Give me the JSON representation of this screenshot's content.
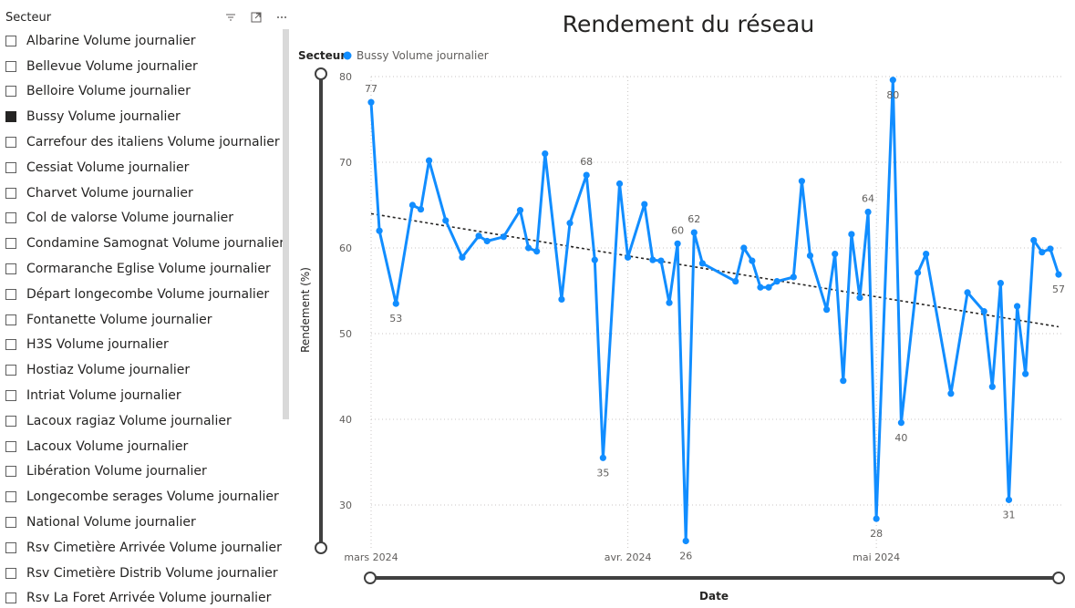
{
  "slicer": {
    "title": "Secteur",
    "icons": [
      "filter-icon",
      "focus-mode-icon",
      "more-options-icon"
    ],
    "items": [
      {
        "label": "Albarine Volume journalier",
        "checked": false
      },
      {
        "label": "Bellevue Volume journalier",
        "checked": false
      },
      {
        "label": "Belloire Volume journalier",
        "checked": false
      },
      {
        "label": "Bussy Volume journalier",
        "checked": true
      },
      {
        "label": "Carrefour des italiens Volume journalier",
        "checked": false
      },
      {
        "label": "Cessiat Volume journalier",
        "checked": false
      },
      {
        "label": "Charvet Volume journalier",
        "checked": false
      },
      {
        "label": "Col de valorse Volume journalier",
        "checked": false
      },
      {
        "label": "Condamine Samognat Volume journalier",
        "checked": false
      },
      {
        "label": "Cormaranche Eglise Volume journalier",
        "checked": false
      },
      {
        "label": "Départ longecombe Volume journalier",
        "checked": false
      },
      {
        "label": "Fontanette Volume journalier",
        "checked": false
      },
      {
        "label": "H3S Volume journalier",
        "checked": false
      },
      {
        "label": "Hostiaz Volume journalier",
        "checked": false
      },
      {
        "label": "Intriat Volume journalier",
        "checked": false
      },
      {
        "label": "Lacoux ragiaz Volume journalier",
        "checked": false
      },
      {
        "label": "Lacoux Volume journalier",
        "checked": false
      },
      {
        "label": "Libération Volume journalier",
        "checked": false
      },
      {
        "label": "Longecombe serages Volume journalier",
        "checked": false
      },
      {
        "label": "National Volume journalier",
        "checked": false
      },
      {
        "label": "Rsv Cimetière Arrivée Volume journalier",
        "checked": false
      },
      {
        "label": "Rsv Cimetière Distrib Volume journalier",
        "checked": false
      },
      {
        "label": "Rsv La Foret Arrivée Volume journalier",
        "checked": false
      }
    ]
  },
  "chart_data": {
    "type": "line",
    "title": "Rendement du réseau",
    "xlabel": "Date",
    "ylabel": "Rendement (%)",
    "legend": {
      "title": "Secteur",
      "placement": "top-left"
    },
    "ylim": [
      25,
      80
    ],
    "xlim": [
      "2024-03-01",
      "2024-05-23"
    ],
    "yticks": [
      30,
      40,
      50,
      60,
      70,
      80
    ],
    "xticks": [
      {
        "date": "2024-03-01",
        "label": "mars 2024"
      },
      {
        "date": "2024-04-01",
        "label": "avr. 2024"
      },
      {
        "date": "2024-05-01",
        "label": "mai 2024"
      }
    ],
    "grid": true,
    "colors": {
      "series": "#118DFF",
      "trend": "#252423"
    },
    "trendline": {
      "style": "dotted",
      "start": [
        "2024-03-01",
        64
      ],
      "end": [
        "2024-05-23",
        50.8
      ]
    },
    "series": [
      {
        "name": "Bussy Volume journalier",
        "points": [
          [
            "2024-03-01",
            77
          ],
          [
            "2024-03-02",
            62
          ],
          [
            "2024-03-04",
            53.5
          ],
          [
            "2024-03-06",
            65
          ],
          [
            "2024-03-07",
            64.5
          ],
          [
            "2024-03-08",
            70.2
          ],
          [
            "2024-03-10",
            63.2
          ],
          [
            "2024-03-12",
            58.9
          ],
          [
            "2024-03-14",
            61.4
          ],
          [
            "2024-03-15",
            60.8
          ],
          [
            "2024-03-17",
            61.3
          ],
          [
            "2024-03-19",
            64.4
          ],
          [
            "2024-03-20",
            60
          ],
          [
            "2024-03-21",
            59.6
          ],
          [
            "2024-03-22",
            71
          ],
          [
            "2024-03-24",
            54
          ],
          [
            "2024-03-25",
            62.9
          ],
          [
            "2024-03-27",
            68.5
          ],
          [
            "2024-03-28",
            58.6
          ],
          [
            "2024-03-29",
            35.5
          ],
          [
            "2024-03-31",
            67.5
          ],
          [
            "2024-04-01",
            58.9
          ],
          [
            "2024-04-03",
            65.1
          ],
          [
            "2024-04-04",
            58.6
          ],
          [
            "2024-04-05",
            58.5
          ],
          [
            "2024-04-06",
            53.6
          ],
          [
            "2024-04-07",
            60.5
          ],
          [
            "2024-04-08",
            25.8
          ],
          [
            "2024-04-09",
            61.8
          ],
          [
            "2024-04-10",
            58.2
          ],
          [
            "2024-04-14",
            56.1
          ],
          [
            "2024-04-15",
            60
          ],
          [
            "2024-04-16",
            58.5
          ],
          [
            "2024-04-17",
            55.4
          ],
          [
            "2024-04-18",
            55.4
          ],
          [
            "2024-04-19",
            56.1
          ],
          [
            "2024-04-21",
            56.6
          ],
          [
            "2024-04-22",
            67.8
          ],
          [
            "2024-04-23",
            59.1
          ],
          [
            "2024-04-25",
            52.8
          ],
          [
            "2024-04-26",
            59.3
          ],
          [
            "2024-04-27",
            44.5
          ],
          [
            "2024-04-28",
            61.6
          ],
          [
            "2024-04-29",
            54.2
          ],
          [
            "2024-04-30",
            64.2
          ],
          [
            "2024-05-01",
            28.4
          ],
          [
            "2024-05-03",
            79.6
          ],
          [
            "2024-05-04",
            39.6
          ],
          [
            "2024-05-06",
            57.1
          ],
          [
            "2024-05-07",
            59.3
          ],
          [
            "2024-05-10",
            43
          ],
          [
            "2024-05-12",
            54.8
          ],
          [
            "2024-05-14",
            52.6
          ],
          [
            "2024-05-15",
            43.8
          ],
          [
            "2024-05-16",
            55.9
          ],
          [
            "2024-05-17",
            30.6
          ],
          [
            "2024-05-18",
            53.2
          ],
          [
            "2024-05-19",
            45.3
          ],
          [
            "2024-05-20",
            60.9
          ],
          [
            "2024-05-21",
            59.5
          ],
          [
            "2024-05-22",
            59.9
          ],
          [
            "2024-05-23",
            56.9
          ]
        ]
      }
    ],
    "data_labels": [
      {
        "date": "2024-03-01",
        "text": "77",
        "pos": "above"
      },
      {
        "date": "2024-03-04",
        "text": "53",
        "pos": "below"
      },
      {
        "date": "2024-03-27",
        "text": "68",
        "pos": "above"
      },
      {
        "date": "2024-03-29",
        "text": "35",
        "pos": "below"
      },
      {
        "date": "2024-04-07",
        "text": "60",
        "pos": "above"
      },
      {
        "date": "2024-04-08",
        "text": "26",
        "pos": "below"
      },
      {
        "date": "2024-04-09",
        "text": "62",
        "pos": "above"
      },
      {
        "date": "2024-04-30",
        "text": "64",
        "pos": "above"
      },
      {
        "date": "2024-05-01",
        "text": "28",
        "pos": "below"
      },
      {
        "date": "2024-05-03",
        "text": "80",
        "pos": "below"
      },
      {
        "date": "2024-05-04",
        "text": "40",
        "pos": "below"
      },
      {
        "date": "2024-05-17",
        "text": "31",
        "pos": "below"
      },
      {
        "date": "2024-05-23",
        "text": "57",
        "pos": "below"
      }
    ]
  }
}
